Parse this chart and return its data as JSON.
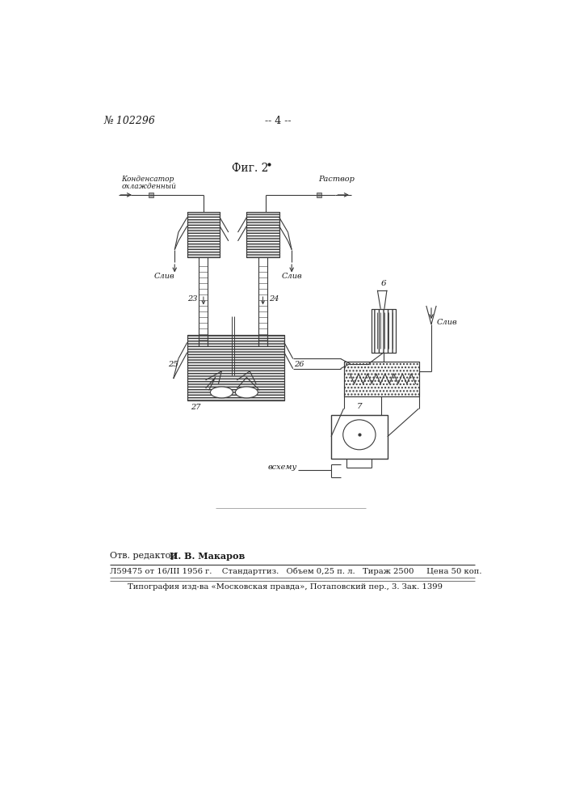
{
  "page_number_text": "№ 102296",
  "page_dash_text": "-- 4 --",
  "fig_label": "Фиг. 2",
  "label_kondensator_line1": "Конденсатор",
  "label_kondensator_line2": "охлажденный",
  "label_rastvor": "Раствор",
  "label_sliv": "Слив",
  "label_vskhemu": "всхему",
  "label_23": "23",
  "label_24": "24",
  "label_25": "25",
  "label_26": "26",
  "label_27": "27",
  "label_6": "6",
  "label_7": "7",
  "editor_label": "Отв. редактор ",
  "editor_name": "И. В. Макаров",
  "footer_line1": "Л59475 от 16/III 1956 г.    Стандартгиз.   Объем 0,25 п. л.   Тираж 2500     Цена 50 коп.",
  "footer_line2": "Типография изд-ва «Московская правда», Потаповский пер., 3. Зак. 1399",
  "bg_color": "#ffffff",
  "line_color": "#3a3a3a",
  "text_color": "#1a1a1a",
  "hatch_color": "#888888"
}
